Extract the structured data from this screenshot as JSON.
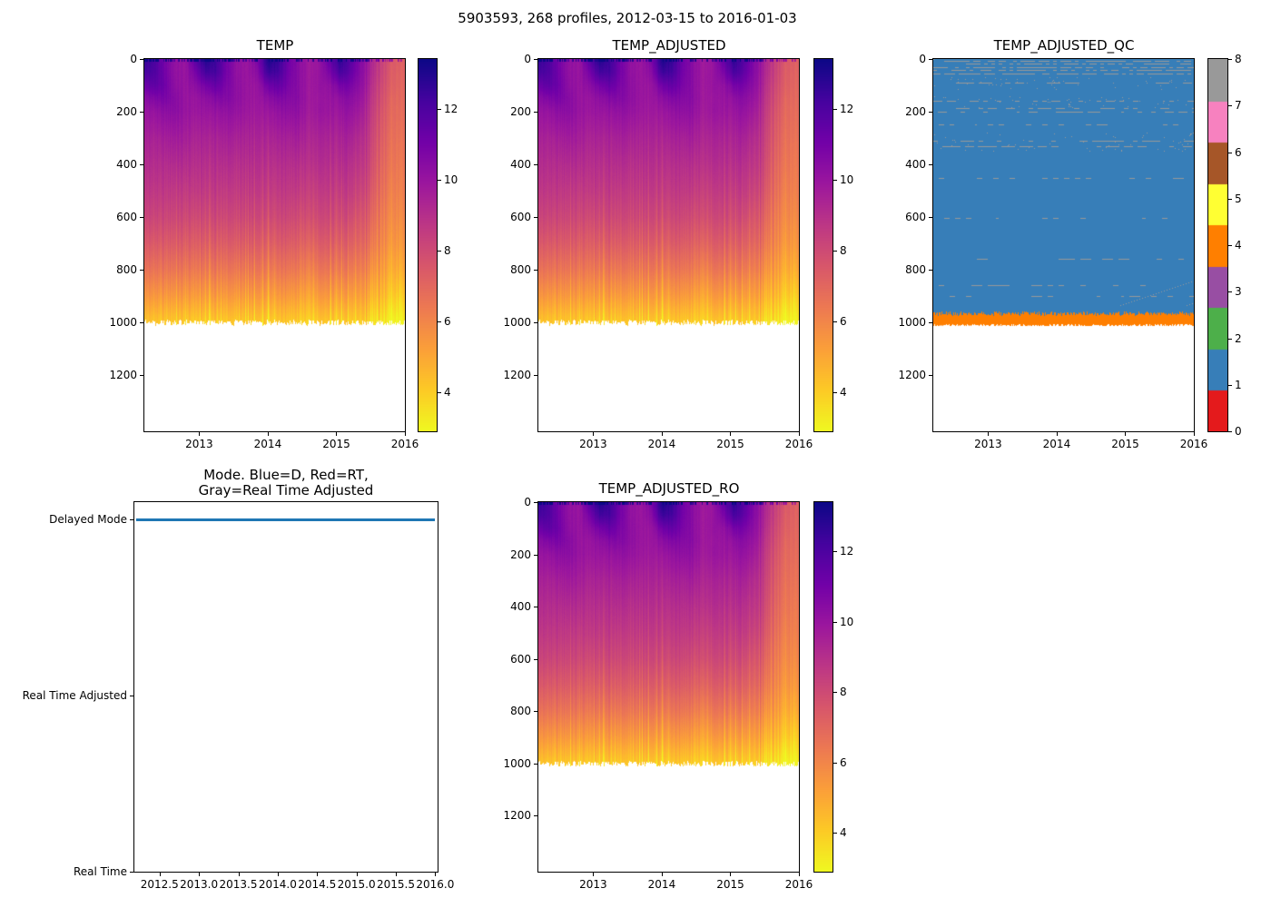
{
  "figure": {
    "suptitle": "5903593, 268 profiles, 2012-03-15 to 2016-01-03"
  },
  "colors": {
    "mode_line_blue": "#1f77b4",
    "qc_palette": [
      "#e41a1c",
      "#377eb8",
      "#4daf4a",
      "#984ea3",
      "#ff7f00",
      "#ffff33",
      "#a65628",
      "#f781bf",
      "#999999"
    ],
    "plasma_stops": [
      "#0d0887",
      "#46039f",
      "#7201a8",
      "#9c179e",
      "#bd3786",
      "#d8576b",
      "#ed7953",
      "#fb9f3a",
      "#fdca26",
      "#f0f921"
    ],
    "colormap_direction": "reversed: high temperature = dark blue, low temperature = yellow"
  },
  "chart_data": [
    {
      "id": "temp",
      "type": "heatmap",
      "title": "TEMP",
      "x_tick_labels": [
        "2013",
        "2014",
        "2015",
        "2016"
      ],
      "y_tick_labels": [
        "0",
        "200",
        "400",
        "600",
        "800",
        "1000",
        "1200"
      ],
      "x_range": [
        2012.2,
        2016.0
      ],
      "depth_range": [
        0,
        1415
      ],
      "data_max_depth": 1000,
      "colorbar_ticks": [
        "12",
        "10",
        "8",
        "6",
        "4"
      ],
      "color_scale": {
        "vmin": 2.9,
        "vmax": 13.4
      },
      "grid": {
        "time": [
          2012.2,
          2012.35,
          2012.5,
          2012.65,
          2012.8,
          2012.95,
          2013.1,
          2013.25,
          2013.4,
          2013.55,
          2013.7,
          2013.85,
          2014.0,
          2014.15,
          2014.3,
          2014.45,
          2014.6,
          2014.75,
          2014.9,
          2015.05,
          2015.2,
          2015.35,
          2015.5,
          2015.65,
          2015.8,
          2015.95
        ],
        "depth": [
          0,
          50,
          100,
          150,
          200,
          300,
          400,
          500,
          600,
          700,
          800,
          900,
          1000
        ],
        "temperature": [
          [
            12.6,
            12.2,
            11.2,
            10.4,
            10.0,
            9.5,
            9.1,
            8.7,
            8.2,
            7.5,
            6.6,
            5.5,
            4.2
          ],
          [
            12.1,
            12.0,
            11.6,
            10.7,
            10.1,
            9.5,
            9.1,
            8.7,
            8.2,
            7.5,
            6.6,
            5.5,
            4.2
          ],
          [
            10.9,
            11.0,
            11.1,
            10.8,
            10.3,
            9.6,
            9.1,
            8.7,
            8.2,
            7.5,
            6.6,
            5.5,
            4.2
          ],
          [
            10.2,
            10.2,
            10.3,
            10.5,
            10.4,
            9.8,
            9.2,
            8.7,
            8.2,
            7.5,
            6.6,
            5.5,
            4.2
          ],
          [
            10.0,
            10.0,
            10.0,
            10.0,
            10.0,
            9.6,
            9.1,
            8.6,
            8.1,
            7.4,
            6.5,
            5.4,
            4.1
          ],
          [
            11.8,
            11.0,
            10.4,
            10.0,
            9.9,
            9.4,
            9.0,
            8.6,
            8.0,
            7.3,
            6.4,
            5.3,
            4.0
          ],
          [
            13.0,
            12.3,
            11.0,
            10.3,
            10.0,
            9.5,
            9.1,
            8.7,
            8.2,
            7.5,
            6.6,
            5.5,
            4.2
          ],
          [
            12.4,
            12.2,
            11.4,
            10.6,
            10.1,
            9.5,
            9.1,
            8.7,
            8.2,
            7.5,
            6.6,
            5.5,
            4.2
          ],
          [
            11.0,
            11.0,
            10.8,
            10.6,
            10.2,
            9.6,
            9.1,
            8.6,
            8.1,
            7.4,
            6.5,
            5.4,
            4.1
          ],
          [
            10.2,
            10.2,
            10.3,
            10.3,
            10.1,
            9.5,
            9.0,
            8.6,
            8.1,
            7.4,
            6.5,
            5.4,
            4.1
          ],
          [
            9.9,
            9.9,
            9.9,
            9.9,
            9.8,
            9.4,
            9.0,
            8.6,
            8.1,
            7.4,
            6.5,
            5.4,
            4.1
          ],
          [
            10.8,
            10.4,
            10.0,
            9.9,
            9.8,
            9.4,
            9.0,
            8.6,
            8.1,
            7.4,
            6.5,
            5.4,
            4.1
          ],
          [
            13.2,
            12.5,
            11.2,
            10.4,
            10.0,
            9.5,
            9.1,
            8.7,
            8.2,
            7.5,
            6.6,
            5.5,
            4.2
          ],
          [
            12.6,
            12.3,
            11.5,
            10.7,
            10.2,
            9.6,
            9.1,
            8.7,
            8.2,
            7.5,
            6.6,
            5.5,
            4.2
          ],
          [
            11.2,
            11.1,
            10.9,
            10.6,
            10.3,
            9.6,
            9.1,
            8.7,
            8.2,
            7.5,
            6.6,
            5.5,
            4.2
          ],
          [
            10.4,
            10.4,
            10.4,
            10.4,
            10.2,
            9.6,
            9.0,
            8.5,
            7.9,
            7.2,
            6.3,
            5.2,
            3.9
          ],
          [
            9.8,
            9.8,
            9.8,
            9.8,
            9.7,
            9.3,
            8.9,
            8.4,
            7.9,
            7.1,
            6.1,
            5.0,
            3.8
          ],
          [
            10.0,
            10.0,
            10.0,
            9.9,
            9.9,
            9.4,
            9.0,
            8.5,
            8.0,
            7.3,
            6.4,
            5.3,
            4.0
          ],
          [
            11.4,
            10.8,
            10.2,
            10.0,
            9.9,
            9.4,
            9.0,
            8.6,
            8.1,
            7.4,
            6.5,
            5.4,
            4.1
          ],
          [
            12.8,
            12.2,
            11.0,
            10.3,
            10.0,
            9.5,
            9.1,
            8.6,
            8.1,
            7.4,
            6.5,
            5.4,
            4.1
          ],
          [
            11.8,
            11.5,
            10.9,
            10.4,
            10.1,
            9.5,
            9.0,
            8.6,
            8.0,
            7.3,
            6.4,
            5.3,
            4.0
          ],
          [
            10.6,
            10.5,
            10.3,
            10.0,
            9.7,
            9.1,
            8.7,
            8.2,
            7.6,
            7.0,
            6.2,
            5.2,
            4.0
          ],
          [
            9.6,
            9.5,
            9.3,
            9.1,
            8.9,
            8.6,
            8.3,
            7.9,
            7.4,
            6.8,
            6.0,
            5.0,
            3.8
          ],
          [
            8.4,
            8.3,
            8.1,
            7.9,
            7.7,
            7.4,
            7.1,
            6.8,
            6.4,
            6.0,
            5.4,
            4.6,
            3.5
          ],
          [
            7.6,
            7.5,
            7.4,
            7.2,
            7.1,
            6.9,
            6.7,
            6.4,
            6.1,
            5.7,
            5.1,
            4.3,
            3.2
          ],
          [
            7.2,
            7.1,
            7.0,
            6.9,
            6.8,
            6.6,
            6.4,
            6.2,
            5.9,
            5.5,
            4.9,
            4.0,
            3.0
          ]
        ]
      }
    },
    {
      "id": "temp_adjusted",
      "type": "heatmap",
      "title": "TEMP_ADJUSTED",
      "x_tick_labels": [
        "2013",
        "2014",
        "2015",
        "2016"
      ],
      "y_tick_labels": [
        "0",
        "200",
        "400",
        "600",
        "800",
        "1000",
        "1200"
      ],
      "x_range": [
        2012.2,
        2016.0
      ],
      "depth_range": [
        0,
        1415
      ],
      "data_max_depth": 1000,
      "colorbar_ticks": [
        "12",
        "10",
        "8",
        "6",
        "4"
      ],
      "color_scale": {
        "vmin": 2.9,
        "vmax": 13.4
      },
      "grid_ref": "temp"
    },
    {
      "id": "temp_adjusted_qc",
      "type": "heatmap_categorical",
      "title": "TEMP_ADJUSTED_QC",
      "x_tick_labels": [
        "2013",
        "2014",
        "2015",
        "2016"
      ],
      "y_tick_labels": [
        "0",
        "200",
        "400",
        "600",
        "800",
        "1000",
        "1200"
      ],
      "x_range": [
        2012.2,
        2016.0
      ],
      "depth_range": [
        0,
        1415
      ],
      "colorbar_ticks": [
        "0",
        "1",
        "2",
        "3",
        "4",
        "5",
        "6",
        "7",
        "8"
      ],
      "dominant_qc_value": 1,
      "deep_band": {
        "qc_value": 4,
        "depth_range": [
          968,
          1012
        ]
      },
      "speckle_qc_value": 8,
      "gray_rows_dense": [
        8,
        18,
        30,
        42,
        55
      ],
      "gray_rows_medium": [
        90,
        160,
        186,
        200,
        310,
        330
      ],
      "gray_rows_sparse": [
        250,
        451,
        603,
        758,
        860,
        900
      ],
      "speckle_bands": [
        [
          70,
          115
        ],
        [
          140,
          185
        ],
        [
          280,
          350
        ]
      ]
    },
    {
      "id": "mode",
      "type": "line",
      "title_lines": [
        "Mode. Blue=D, Red=RT,",
        "Gray=Real Time Adjusted"
      ],
      "y_tick_labels": [
        "Delayed Mode",
        "Real Time Adjusted",
        "Real Time"
      ],
      "x_tick_labels": [
        "2012.5",
        "2013.0",
        "2013.5",
        "2014.0",
        "2014.5",
        "2015.0",
        "2015.5",
        "2016.0"
      ],
      "xlim": [
        2012.18,
        2016.03
      ],
      "ylim": [
        0,
        2.1
      ],
      "y_category_values": {
        "Delayed Mode": 2,
        "Real Time Adjusted": 1,
        "Real Time": 0
      },
      "series": [
        {
          "name": "mode",
          "color": "#1f77b4",
          "constant_value": "Delayed Mode",
          "x_start": 2012.2,
          "x_end": 2016.0
        }
      ]
    },
    {
      "id": "temp_adjusted_ro",
      "type": "heatmap",
      "title": "TEMP_ADJUSTED_RO",
      "x_tick_labels": [
        "2013",
        "2014",
        "2015",
        "2016"
      ],
      "y_tick_labels": [
        "0",
        "200",
        "400",
        "600",
        "800",
        "1000",
        "1200"
      ],
      "x_range": [
        2012.2,
        2016.0
      ],
      "depth_range": [
        0,
        1415
      ],
      "data_max_depth": 1000,
      "colorbar_ticks": [
        "12",
        "10",
        "8",
        "6",
        "4"
      ],
      "color_scale": {
        "vmin": 2.9,
        "vmax": 13.4
      },
      "grid_ref": "temp"
    }
  ]
}
